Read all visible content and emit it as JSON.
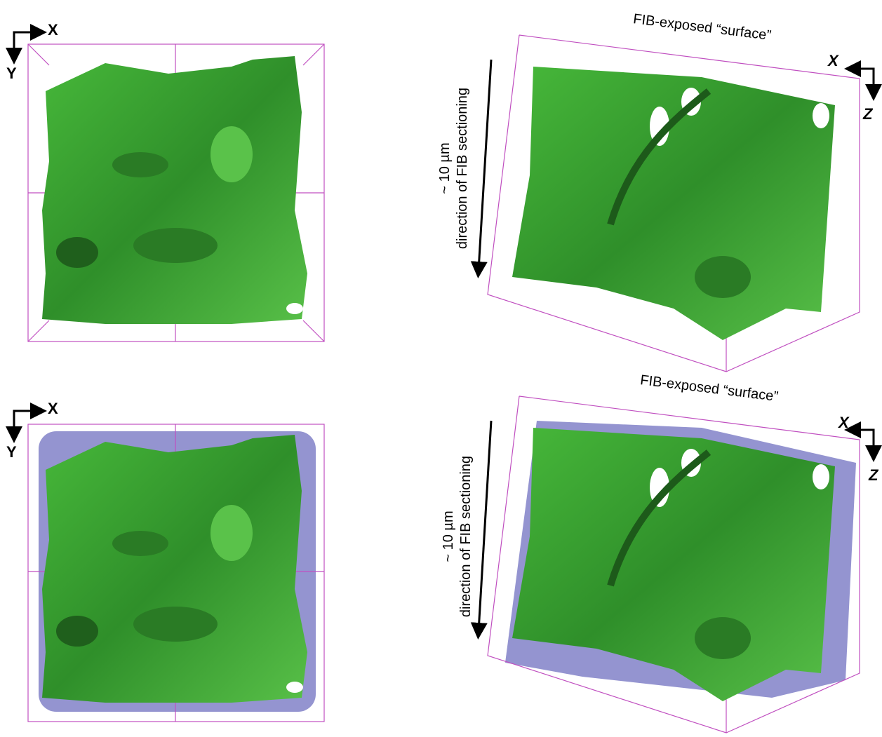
{
  "panels": [
    {
      "axes": {
        "horizontal": "X",
        "vertical": "Y"
      }
    },
    {
      "surface_label": "FIB-exposed “surface”",
      "axes": {
        "horizontal": "X",
        "vertical": "Z"
      },
      "scale_label": "~ 10 µm",
      "direction_label": "direction of FIB sectioning"
    },
    {
      "axes": {
        "horizontal": "X",
        "vertical": "Y"
      }
    },
    {
      "surface_label": "FIB-exposed “surface”",
      "axes": {
        "horizontal": "X",
        "vertical": "Z"
      },
      "scale_label": "~ 10 µm",
      "direction_label": "direction of FIB sectioning"
    }
  ]
}
